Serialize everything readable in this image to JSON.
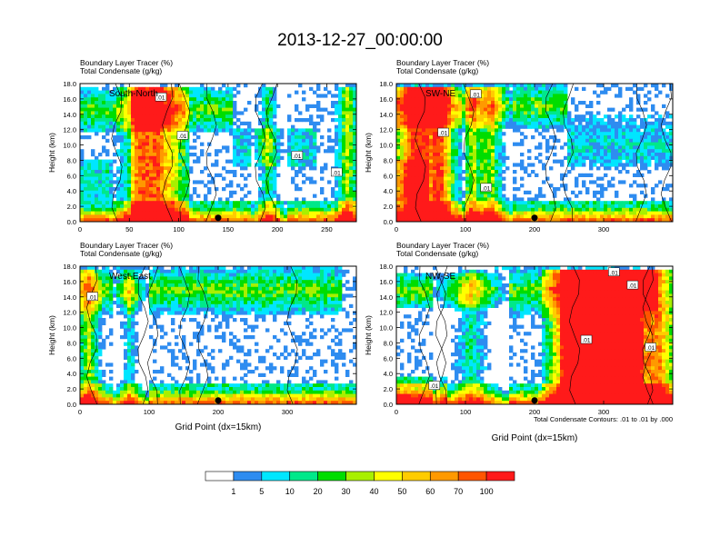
{
  "chart_data": {
    "type": "heatmap",
    "title": "2013-12-27_00:00:00",
    "footnote": "Total Condensate Contours: .01 to .01 by .000",
    "colorbar": {
      "levels": [
        "1",
        "5",
        "10",
        "20",
        "30",
        "40",
        "50",
        "60",
        "70",
        "100"
      ],
      "colors": [
        "#ffffff",
        "#2e8cf0",
        "#00e6ff",
        "#00e88a",
        "#00dd00",
        "#a8f000",
        "#ffff00",
        "#ffcc00",
        "#ff9900",
        "#ff5500",
        "#ff1a1a"
      ]
    },
    "panels": [
      {
        "id": "south-north",
        "label": "South-North",
        "subtitle1": "Boundary Layer Tracer   (%)",
        "subtitle2": "Total Condensate   (g/kg)",
        "ylabel": "Height (km)",
        "xlabel": "",
        "xlim": [
          0,
          280
        ],
        "xticks": [
          0,
          50,
          100,
          150,
          200,
          250
        ],
        "ylim": [
          0,
          18
        ],
        "yticks": [
          "0.0",
          "2.0",
          "4.0",
          "6.0",
          "8.0",
          "10.0",
          "12.0",
          "14.0",
          "16.0",
          "18.0"
        ],
        "marker_x": 140,
        "contour_labels": [
          {
            "x": 82,
            "y": 16.2,
            "text": ".01"
          },
          {
            "x": 104,
            "y": 11.2,
            "text": ".01"
          },
          {
            "x": 220,
            "y": 8.6,
            "text": ".01"
          },
          {
            "x": 260,
            "y": 6.4,
            "text": ".01"
          }
        ]
      },
      {
        "id": "sw-ne",
        "label": "SW-NE",
        "subtitle1": "Boundary Layer Tracer   (%)",
        "subtitle2": "Total Condensate   (g/kg)",
        "ylabel": "Height (km)",
        "xlabel": "",
        "xlim": [
          0,
          400
        ],
        "xticks": [
          0,
          100,
          200,
          300
        ],
        "ylim": [
          0,
          18
        ],
        "yticks": [
          "0.0",
          "2.0",
          "4.0",
          "6.0",
          "8.0",
          "10.0",
          "12.0",
          "14.0",
          "16.0",
          "18.0"
        ],
        "marker_x": 200,
        "contour_labels": [
          {
            "x": 115,
            "y": 16.6,
            "text": ".01"
          },
          {
            "x": 68,
            "y": 11.6,
            "text": ".01"
          },
          {
            "x": 130,
            "y": 4.4,
            "text": ".01"
          }
        ]
      },
      {
        "id": "west-east",
        "label": "West-East",
        "subtitle1": "Boundary Layer Tracer   (%)",
        "subtitle2": "Total Condensate   (g/kg)",
        "ylabel": "Height (km)",
        "xlabel": "Grid Point (dx=15km)",
        "xlim": [
          0,
          400
        ],
        "xticks": [
          0,
          100,
          200,
          300
        ],
        "ylim": [
          0,
          18
        ],
        "yticks": [
          "0.0",
          "2.0",
          "4.0",
          "6.0",
          "8.0",
          "10.0",
          "12.0",
          "14.0",
          "16.0",
          "18.0"
        ],
        "marker_x": 200,
        "contour_labels": [
          {
            "x": 18,
            "y": 14.0,
            "text": ".01"
          }
        ]
      },
      {
        "id": "nw-se",
        "label": "NW-SE",
        "subtitle1": "Boundary Layer Tracer   (%)",
        "subtitle2": "Total Condensate   (g/kg)",
        "ylabel": "Height (km)",
        "xlabel": "Grid Point (dx=15km)",
        "xlim": [
          0,
          400
        ],
        "xticks": [
          0,
          100,
          200,
          300
        ],
        "ylim": [
          0,
          18
        ],
        "yticks": [
          "0.0",
          "2.0",
          "4.0",
          "6.0",
          "8.0",
          "10.0",
          "12.0",
          "14.0",
          "16.0",
          "18.0"
        ],
        "marker_x": 200,
        "contour_labels": [
          {
            "x": 315,
            "y": 17.2,
            "text": ".01"
          },
          {
            "x": 342,
            "y": 15.5,
            "text": ".01"
          },
          {
            "x": 275,
            "y": 8.4,
            "text": ".01"
          },
          {
            "x": 368,
            "y": 7.4,
            "text": ".01"
          },
          {
            "x": 55,
            "y": 2.4,
            "text": ".01"
          }
        ]
      }
    ]
  }
}
